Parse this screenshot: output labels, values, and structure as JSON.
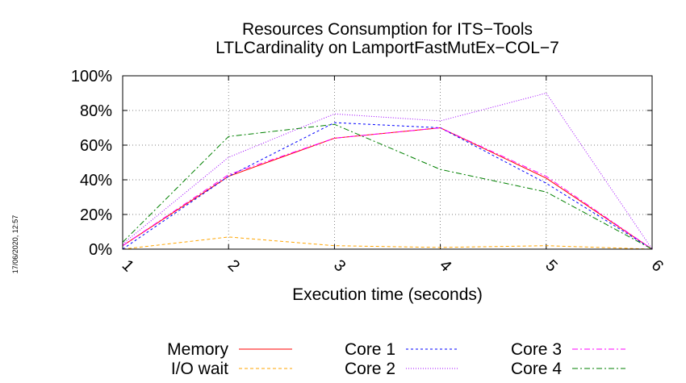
{
  "chart_data": {
    "type": "line",
    "title": [
      "Resources Consumption for ITS−Tools",
      "LTLCardinality on LamportFastMutEx−COL−7"
    ],
    "xlabel": "Execution time (seconds)",
    "ylabel": "",
    "x": [
      1,
      2,
      3,
      4,
      5,
      6
    ],
    "xticks": [
      "1",
      "2",
      "3",
      "4",
      "5",
      "6"
    ],
    "xlim": [
      1,
      6
    ],
    "ylim": [
      0,
      100
    ],
    "yticks": [
      "0%",
      "20%",
      "40%",
      "60%",
      "80%",
      "100%"
    ],
    "yticks_values": [
      0,
      20,
      40,
      60,
      80,
      100
    ],
    "grid": true,
    "legend_position": "bottom",
    "series": [
      {
        "name": "Memory",
        "color": "#ff0000",
        "dash": "",
        "values": [
          2,
          42,
          64,
          70,
          41,
          0
        ]
      },
      {
        "name": "I/O wait",
        "color": "#ffa500",
        "dash": "4,3",
        "values": [
          0,
          7,
          2,
          1,
          2,
          0
        ]
      },
      {
        "name": "Core 1",
        "color": "#0000ff",
        "dash": "3,3",
        "values": [
          0,
          42,
          73,
          70,
          38,
          0
        ]
      },
      {
        "name": "Core 2",
        "color": "#a000ff",
        "dash": "1,2",
        "values": [
          3,
          53,
          78,
          74,
          90,
          0
        ]
      },
      {
        "name": "Core 3",
        "color": "#ff00ff",
        "dash": "7,3,2,3",
        "values": [
          2,
          43,
          64,
          70,
          42,
          0
        ]
      },
      {
        "name": "Core 4",
        "color": "#008000",
        "dash": "7,3,2,3",
        "values": [
          4,
          65,
          72,
          46,
          33,
          0
        ]
      }
    ]
  },
  "timestamp": "17/06/2020, 12:57"
}
